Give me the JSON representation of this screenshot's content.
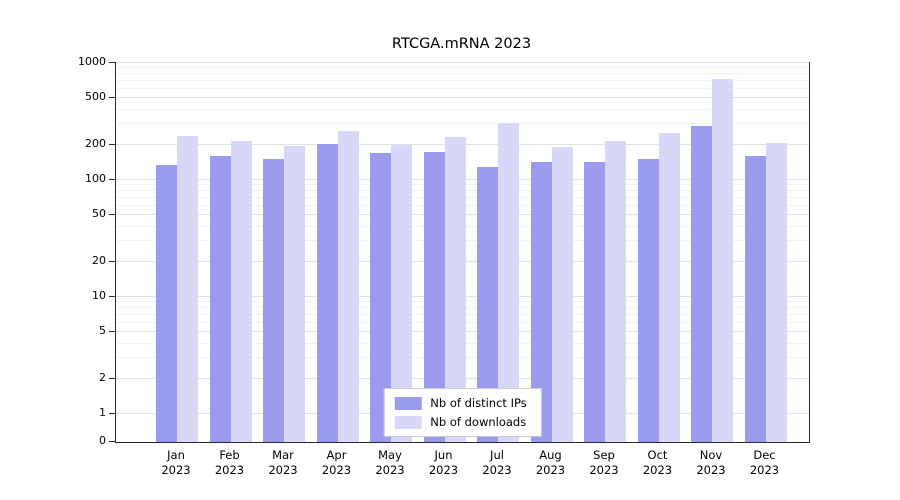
{
  "title": "RTCGA.mRNA 2023",
  "chart_data": {
    "type": "bar",
    "title": "RTCGA.mRNA 2023",
    "xlabel": "",
    "ylabel": "",
    "yscale": "log-like",
    "ylim": [
      0,
      1000
    ],
    "yticks": [
      1000,
      500,
      200,
      100,
      50,
      20,
      10,
      5,
      2,
      1,
      0
    ],
    "grid": true,
    "legend_position": "bottom-center-inside",
    "categories": [
      "Jan",
      "Feb",
      "Mar",
      "Apr",
      "May",
      "Jun",
      "Jul",
      "Aug",
      "Sep",
      "Oct",
      "Nov",
      "Dec"
    ],
    "year": "2023",
    "series": [
      {
        "name": "Nb of distinct IPs",
        "color": "#9b9bee",
        "values": [
          135,
          160,
          150,
          205,
          170,
          172,
          130,
          142,
          142,
          152,
          290,
          160
        ]
      },
      {
        "name": "Nb of downloads",
        "color": "#d7d7f8",
        "values": [
          240,
          215,
          196,
          262,
          201,
          235,
          310,
          192,
          215,
          250,
          730,
          207
        ]
      }
    ]
  }
}
